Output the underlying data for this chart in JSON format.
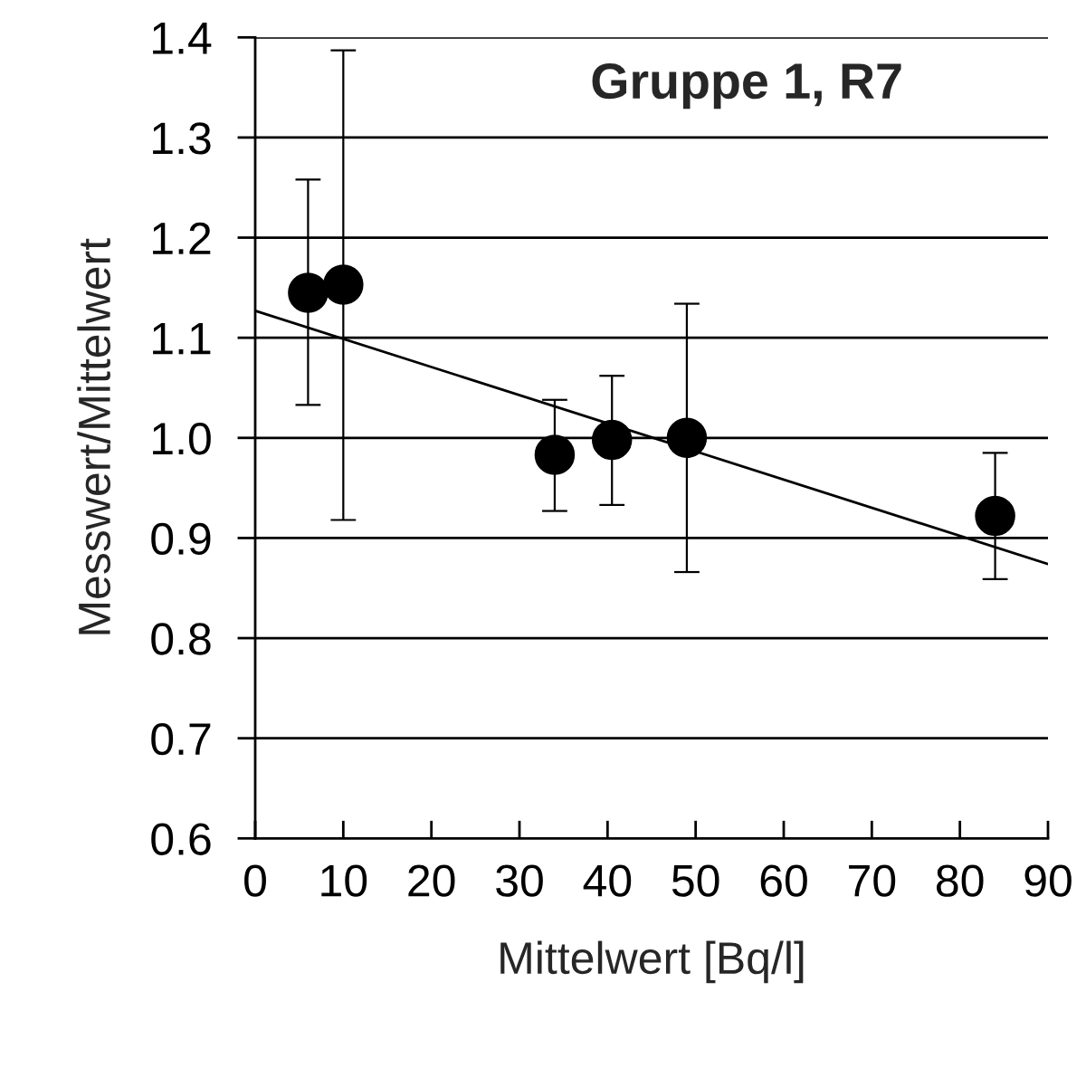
{
  "chart_data": {
    "type": "scatter",
    "title": "Gruppe 1, R7",
    "xlabel": "Mittelwert [Bq/l]",
    "ylabel": "Messwert/Mittelwert",
    "xlim": [
      0,
      90
    ],
    "xticks": [
      0,
      10,
      20,
      30,
      40,
      50,
      60,
      70,
      80,
      90
    ],
    "ylim": [
      0.6,
      1.4
    ],
    "yticks": [
      0.6,
      0.7,
      0.8,
      0.9,
      {
        "value": 1.0,
        "label": "1.0"
      },
      1.1,
      1.2,
      1.3,
      1.4
    ],
    "grid": "y",
    "marker": "circle",
    "series": [
      {
        "color": "#000000",
        "x": [
          6,
          10,
          34,
          40.5,
          49,
          84
        ],
        "values": [
          1.145,
          1.153,
          0.983,
          0.998,
          1.0,
          0.922
        ],
        "errors": [
          [
            1.033,
            1.258
          ],
          [
            0.918,
            1.387
          ],
          [
            0.927,
            1.038
          ],
          [
            0.933,
            1.062
          ],
          [
            0.866,
            1.134
          ],
          [
            0.859,
            0.985
          ]
        ]
      },
      {
        "type": "line",
        "color": "#000000",
        "x": [
          0,
          90
        ],
        "values": [
          1.127,
          0.874
        ],
        "marker": "none",
        "line_style": "solid"
      }
    ]
  }
}
